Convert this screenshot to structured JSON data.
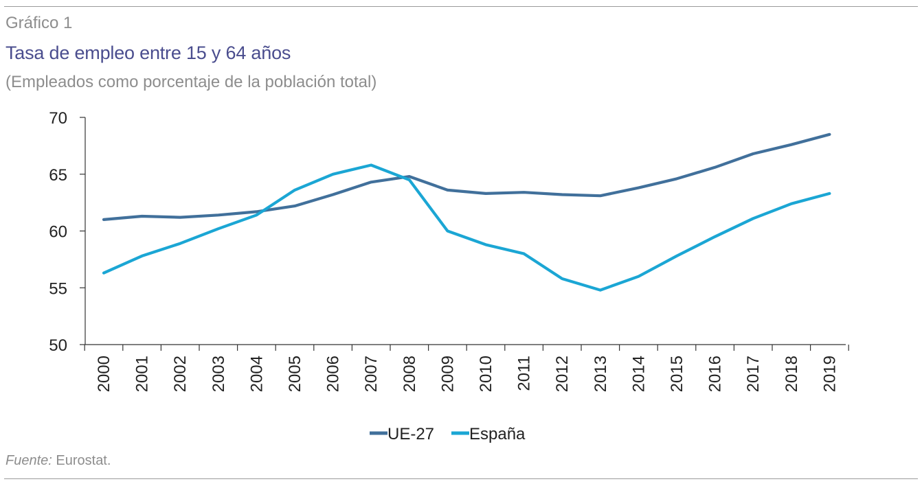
{
  "header": {
    "figure_label": "Gráfico 1",
    "title": "Tasa de empleo entre 15 y 64 años",
    "subtitle": "(Empleados como porcentaje de la población total)"
  },
  "source": {
    "label": "Fuente:",
    "text": " Eurostat."
  },
  "colors": {
    "ue27": "#41709b",
    "espana": "#1ba6d4",
    "title": "#4a4d8e",
    "muted": "#8d8d8d"
  },
  "chart_data": {
    "type": "line",
    "title": "Tasa de empleo entre 15 y 64 años",
    "subtitle": "(Empleados como porcentaje de la población total)",
    "xlabel": "",
    "ylabel": "",
    "ylim": [
      50,
      70
    ],
    "yticks": [
      50,
      55,
      60,
      65,
      70
    ],
    "grid": false,
    "legend_position": "bottom",
    "categories": [
      "2000",
      "2001",
      "2002",
      "2003",
      "2004",
      "2005",
      "2006",
      "2007",
      "2008",
      "2009",
      "2010",
      "2011",
      "2012",
      "2013",
      "2014",
      "2015",
      "2016",
      "2017",
      "2018",
      "2019"
    ],
    "series": [
      {
        "name": "UE-27",
        "color": "#41709b",
        "values": [
          61.0,
          61.3,
          61.2,
          61.4,
          61.7,
          62.2,
          63.2,
          64.3,
          64.8,
          63.6,
          63.3,
          63.4,
          63.2,
          63.1,
          63.8,
          64.6,
          65.6,
          66.8,
          67.6,
          68.5
        ]
      },
      {
        "name": "España",
        "color": "#1ba6d4",
        "values": [
          56.3,
          57.8,
          58.9,
          60.2,
          61.4,
          63.6,
          65.0,
          65.8,
          64.5,
          60.0,
          58.8,
          58.0,
          55.8,
          54.8,
          56.0,
          57.8,
          59.5,
          61.1,
          62.4,
          63.3
        ]
      }
    ]
  }
}
